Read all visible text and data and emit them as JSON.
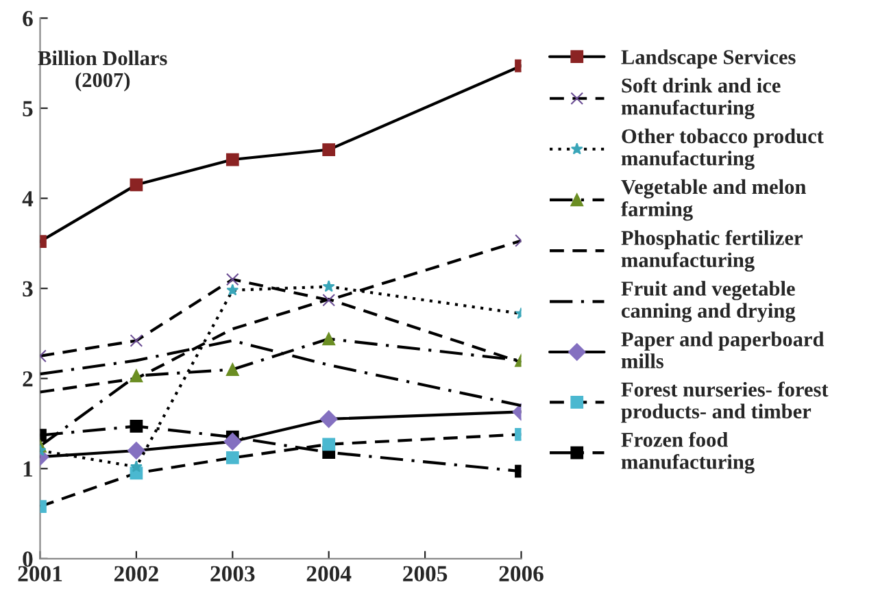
{
  "chart_data": {
    "type": "line",
    "annotations": [
      "Billion Dollars\n(2007)"
    ],
    "x": [
      2001,
      2002,
      2003,
      2004,
      2006
    ],
    "xlim": [
      2001,
      2006
    ],
    "xticks": [
      2001,
      2002,
      2003,
      2004,
      2005,
      2006
    ],
    "ylim": [
      0,
      6
    ],
    "yticks": [
      0,
      1,
      2,
      3,
      4,
      5,
      6
    ],
    "grid": false,
    "legend": "right",
    "series": [
      {
        "name": "Landscape Services",
        "color": "#8b2323",
        "marker": "square",
        "line_style": "solid",
        "values": [
          3.52,
          4.15,
          4.43,
          4.54,
          5.47
        ]
      },
      {
        "name": "Soft drink and ice manufacturing",
        "color": "#6a4c93",
        "marker": "cross",
        "line_style": "dashed",
        "values": [
          2.25,
          2.42,
          3.1,
          2.87,
          3.53
        ]
      },
      {
        "name": "Other tobacco product manufacturing",
        "color": "#3aa6b9",
        "marker": "star",
        "line_style": "dotted",
        "values": [
          1.2,
          1.02,
          2.98,
          3.02,
          2.72
        ]
      },
      {
        "name": "Vegetable and melon farming",
        "color": "#6b8e23",
        "marker": "triangle",
        "line_style": "dashdot",
        "values": [
          1.25,
          2.03,
          2.1,
          2.44,
          2.2
        ]
      },
      {
        "name": "Phosphatic fertilizer manufacturing",
        "color": "#000000",
        "marker": "none",
        "line_style": "dashed",
        "values": [
          1.85,
          2.0,
          2.55,
          2.88,
          2.18
        ]
      },
      {
        "name": "Fruit and vegetable canning and drying",
        "color": "#000000",
        "marker": "none",
        "line_style": "dashdot",
        "values": [
          2.05,
          2.2,
          2.42,
          2.15,
          1.7
        ]
      },
      {
        "name": "Paper and paperboard mills",
        "color": "#8470c0",
        "marker": "diamond",
        "line_style": "solid",
        "values": [
          1.13,
          1.2,
          1.3,
          1.55,
          1.63
        ]
      },
      {
        "name": "Forest nurseries- forest products- and timber",
        "color": "#4bb8d0",
        "marker": "square",
        "line_style": "dashed",
        "values": [
          0.58,
          0.95,
          1.12,
          1.27,
          1.38
        ]
      },
      {
        "name": "Frozen food manufacturing",
        "color": "#000000",
        "marker": "square",
        "line_style": "dashdot",
        "values": [
          1.37,
          1.47,
          1.35,
          1.18,
          0.97
        ]
      }
    ]
  }
}
